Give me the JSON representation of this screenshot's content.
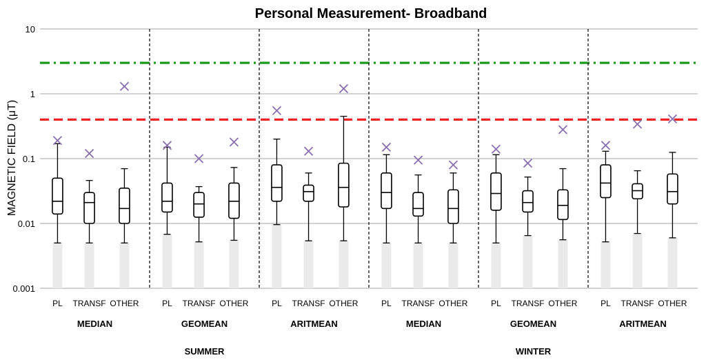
{
  "chart_data": {
    "type": "box",
    "title": "Personal Measurement- Broadband",
    "ylabel": "MAGNETIC FIELD (μT)",
    "xlabel": "",
    "yscale": "log",
    "ylim": [
      0.001,
      10
    ],
    "yticks": [
      "10",
      "1",
      "0.1",
      "0.01",
      "0.001"
    ],
    "grid": true,
    "reference_lines": [
      {
        "value": 3,
        "style": "dash-dot",
        "color": "#1a9a1a"
      },
      {
        "value": 0.4,
        "style": "dashed",
        "color": "#ee2222"
      }
    ],
    "seasons": [
      "SUMMER",
      "WINTER"
    ],
    "groups": [
      {
        "label": "MEDIAN",
        "season": "SUMMER",
        "boxes": [
          {
            "category": "PL",
            "min": 0.005,
            "q1": 0.014,
            "median": 0.022,
            "q3": 0.05,
            "max": 0.17,
            "mark": 0.19
          },
          {
            "category": "TRANSF",
            "min": 0.005,
            "q1": 0.01,
            "median": 0.021,
            "q3": 0.03,
            "max": 0.046,
            "mark": 0.12
          },
          {
            "category": "OTHER",
            "min": 0.005,
            "q1": 0.01,
            "median": 0.017,
            "q3": 0.035,
            "max": 0.07,
            "mark": 1.3
          }
        ]
      },
      {
        "label": "GEOMEAN",
        "season": "SUMMER",
        "boxes": [
          {
            "category": "PL",
            "min": 0.0068,
            "q1": 0.015,
            "median": 0.022,
            "q3": 0.042,
            "max": 0.15,
            "mark": 0.16
          },
          {
            "category": "TRANSF",
            "min": 0.0052,
            "q1": 0.0125,
            "median": 0.02,
            "q3": 0.03,
            "max": 0.037,
            "mark": 0.1
          },
          {
            "category": "OTHER",
            "min": 0.0055,
            "q1": 0.012,
            "median": 0.022,
            "q3": 0.042,
            "max": 0.073,
            "mark": 0.18
          }
        ]
      },
      {
        "label": "ARITMEAN",
        "season": "SUMMER",
        "boxes": [
          {
            "category": "PL",
            "min": 0.0096,
            "q1": 0.022,
            "median": 0.036,
            "q3": 0.08,
            "max": 0.2,
            "mark": 0.55
          },
          {
            "category": "TRANSF",
            "min": 0.0054,
            "q1": 0.022,
            "median": 0.031,
            "q3": 0.039,
            "max": 0.06,
            "mark": 0.13
          },
          {
            "category": "OTHER",
            "min": 0.0054,
            "q1": 0.018,
            "median": 0.036,
            "q3": 0.085,
            "max": 0.45,
            "mark": 1.2
          }
        ]
      },
      {
        "label": "MEDIAN",
        "season": "WINTER",
        "boxes": [
          {
            "category": "PL",
            "min": 0.005,
            "q1": 0.017,
            "median": 0.03,
            "q3": 0.06,
            "max": 0.115,
            "mark": 0.15
          },
          {
            "category": "TRANSF",
            "min": 0.005,
            "q1": 0.013,
            "median": 0.017,
            "q3": 0.03,
            "max": 0.056,
            "mark": 0.095
          },
          {
            "category": "OTHER",
            "min": 0.005,
            "q1": 0.01,
            "median": 0.017,
            "q3": 0.033,
            "max": 0.06,
            "mark": 0.08
          }
        ]
      },
      {
        "label": "GEOMEAN",
        "season": "WINTER",
        "boxes": [
          {
            "category": "PL",
            "min": 0.005,
            "q1": 0.016,
            "median": 0.029,
            "q3": 0.06,
            "max": 0.115,
            "mark": 0.14
          },
          {
            "category": "TRANSF",
            "min": 0.0065,
            "q1": 0.015,
            "median": 0.021,
            "q3": 0.032,
            "max": 0.052,
            "mark": 0.085
          },
          {
            "category": "OTHER",
            "min": 0.0056,
            "q1": 0.0115,
            "median": 0.019,
            "q3": 0.033,
            "max": 0.07,
            "mark": 0.28
          }
        ]
      },
      {
        "label": "ARITMEAN",
        "season": "WINTER",
        "boxes": [
          {
            "category": "PL",
            "min": 0.0052,
            "q1": 0.025,
            "median": 0.042,
            "q3": 0.08,
            "max": 0.13,
            "mark": 0.16
          },
          {
            "category": "TRANSF",
            "min": 0.007,
            "q1": 0.024,
            "median": 0.032,
            "q3": 0.041,
            "max": 0.065,
            "mark": 0.34
          },
          {
            "category": "OTHER",
            "min": 0.006,
            "q1": 0.02,
            "median": 0.031,
            "q3": 0.058,
            "max": 0.125,
            "mark": 0.41
          }
        ]
      }
    ]
  }
}
